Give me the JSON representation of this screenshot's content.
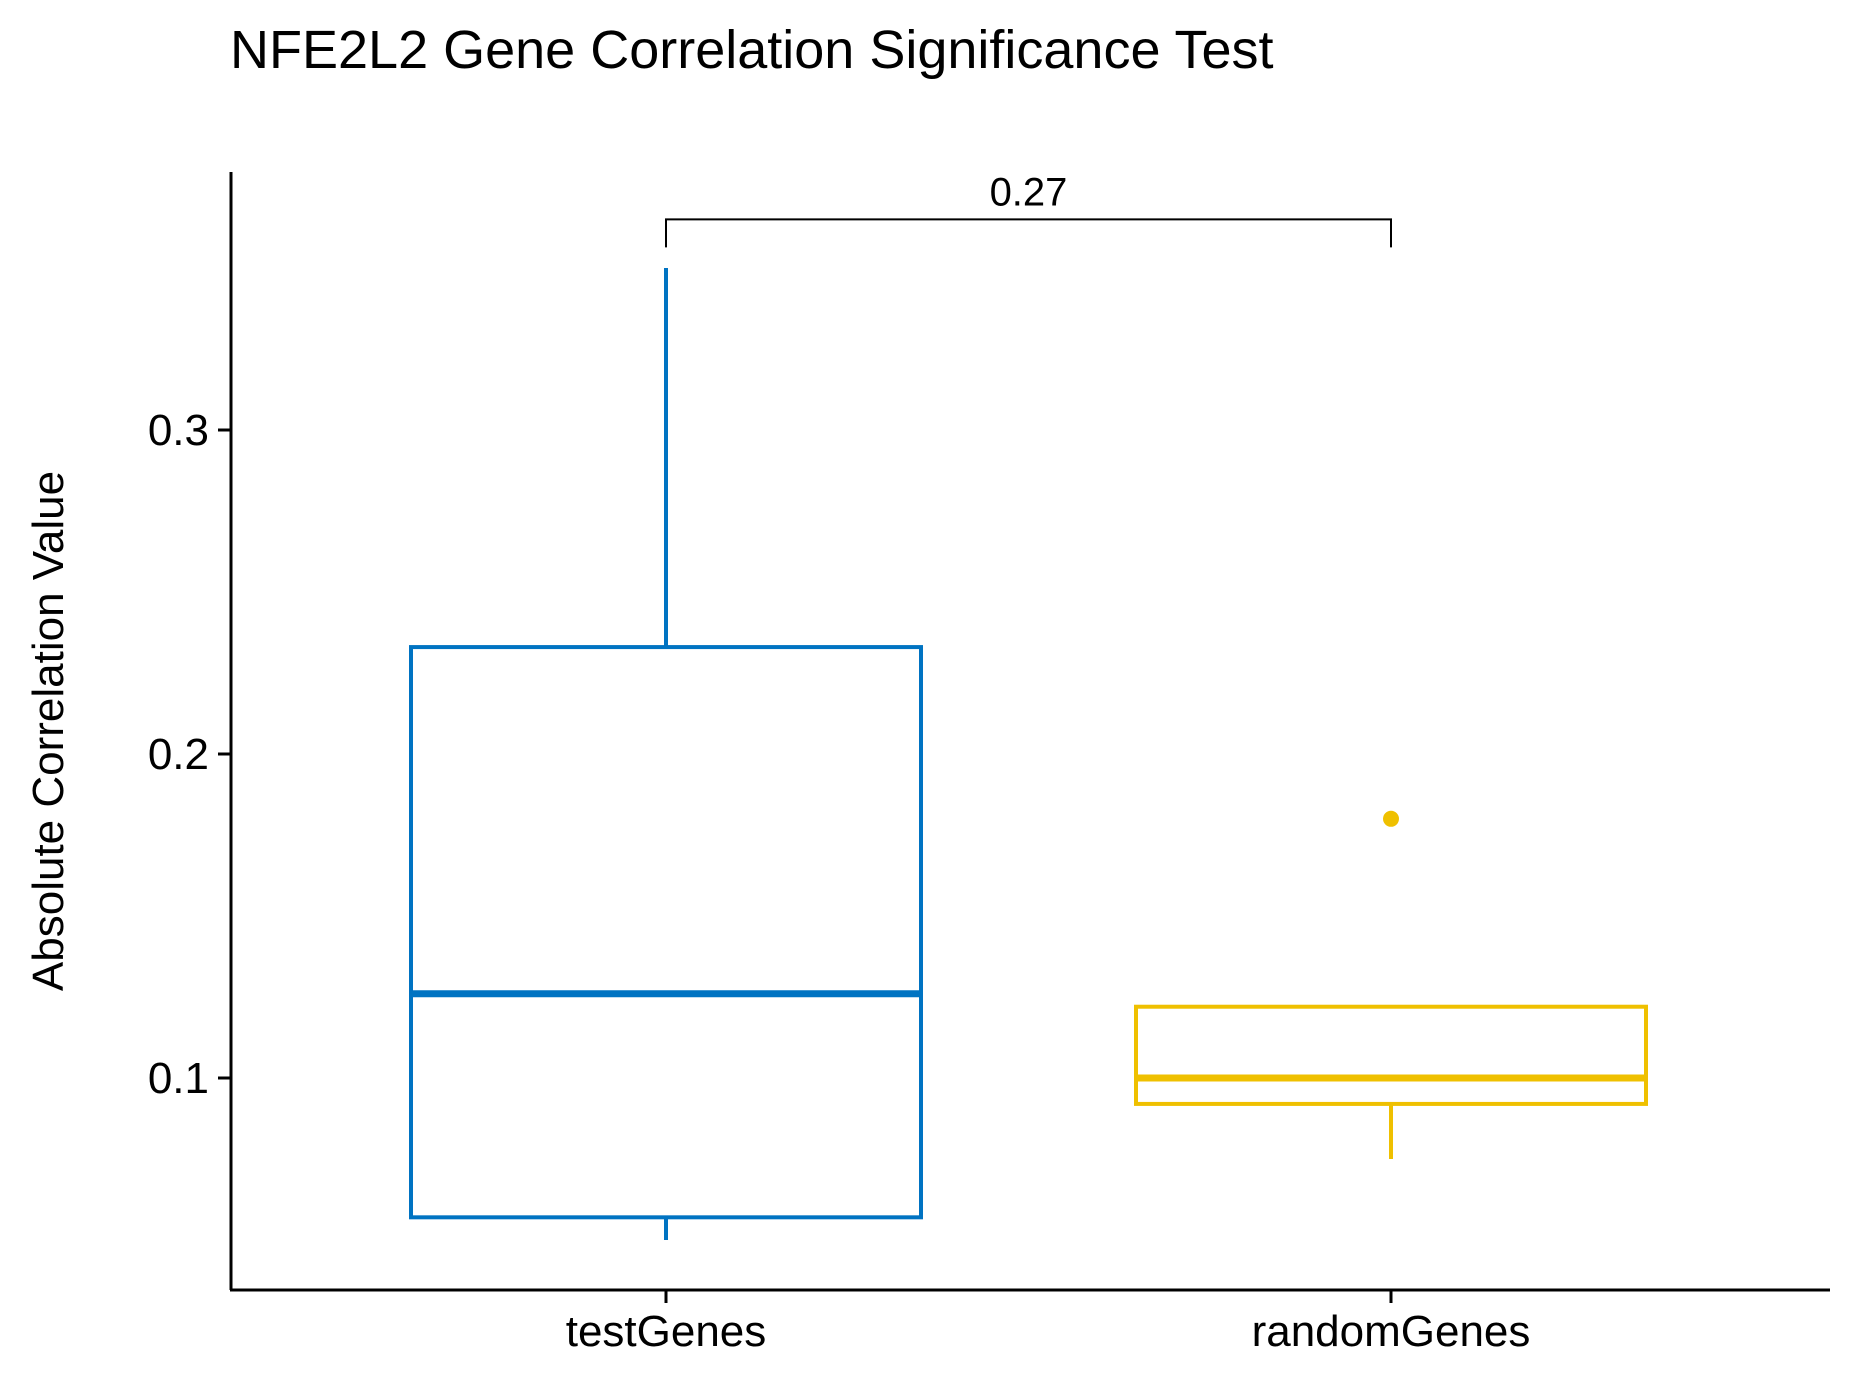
{
  "chart_data": {
    "type": "box",
    "title": "NFE2L2 Gene Correlation Significance Test",
    "xlabel": "",
    "ylabel": "Absolute Correlation Value",
    "categories": [
      "testGenes",
      "randomGenes"
    ],
    "ylim": [
      0.03,
      0.375
    ],
    "yticks": [
      0.1,
      0.2,
      0.3
    ],
    "ytick_labels": [
      "0.1",
      "0.2",
      "0.3"
    ],
    "grid": false,
    "legend": "none",
    "boxes": [
      {
        "category": "testGenes",
        "color": "#0073C2",
        "whisker_low": 0.05,
        "q1": 0.057,
        "median": 0.126,
        "q3": 0.233,
        "whisker_high": 0.35,
        "outliers": []
      },
      {
        "category": "randomGenes",
        "color": "#EFC000",
        "whisker_low": 0.075,
        "q1": 0.092,
        "median": 0.1,
        "q3": 0.122,
        "whisker_high": 0.122,
        "outliers": [
          0.18
        ]
      }
    ],
    "comparison": {
      "groups": [
        "testGenes",
        "randomGenes"
      ],
      "label": "0.27",
      "y": 0.365
    }
  }
}
